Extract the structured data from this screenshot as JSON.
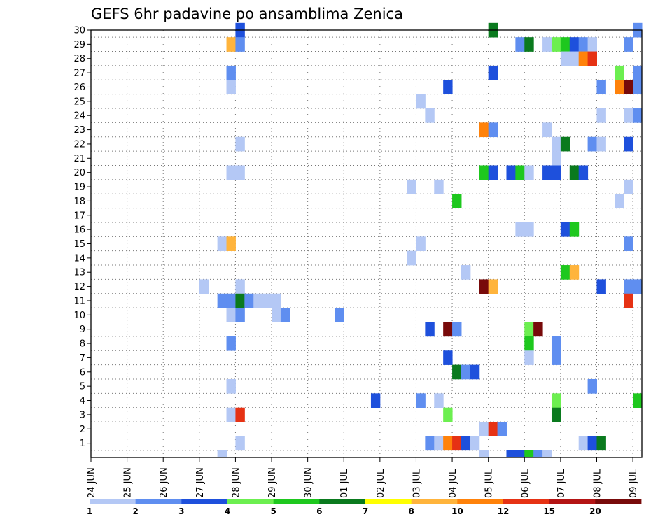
{
  "chart_data": {
    "type": "heatmap",
    "title": "GEFS 6hr padavine po ansamblima Zenica",
    "xlabel": "",
    "ylabel": "",
    "x_tick_labels": [
      "24 JUN",
      "25 JUN",
      "26 JUN",
      "27 JUN",
      "28 JUN",
      "29 JUN",
      "30 JUN",
      "01 JUL",
      "02 JUL",
      "03 JUL",
      "04 JUL",
      "05 JUL",
      "06 JUL",
      "07 JUL",
      "08 JUL",
      "09 JUL"
    ],
    "y_tick_labels": [
      "1",
      "2",
      "3",
      "4",
      "5",
      "6",
      "7",
      "8",
      "9",
      "10",
      "11",
      "12",
      "13",
      "14",
      "15",
      "16",
      "17",
      "18",
      "19",
      "20",
      "21",
      "22",
      "23",
      "24",
      "25",
      "26",
      "27",
      "28",
      "29",
      "30"
    ],
    "x_unit": "6-hour step (0 = 24 JUN 00h, 60 = 09 JUL 00h)",
    "xlim": [
      0,
      61
    ],
    "ylim": [
      0,
      30
    ],
    "grid": true,
    "colorbar": {
      "position": "bottom",
      "labels": [
        "1",
        "2",
        "3",
        "4",
        "5",
        "6",
        "7",
        "8",
        "10",
        "12",
        "15",
        "20"
      ],
      "colors": [
        "#b4c8f5",
        "#5f8ef0",
        "#1e50dc",
        "#6cef50",
        "#1ec81e",
        "#0a7a1e",
        "#ffff00",
        "#ffb43c",
        "#ff820a",
        "#e63214",
        "#b41414",
        "#780a0a"
      ]
    },
    "cells": [
      {
        "m": 30,
        "t": 16,
        "c": 2
      },
      {
        "m": 30,
        "t": 44,
        "c": 5
      },
      {
        "m": 30,
        "t": 60,
        "c": 1
      },
      {
        "m": 29,
        "t": 15,
        "c": 7
      },
      {
        "m": 29,
        "t": 16,
        "c": 1
      },
      {
        "m": 29,
        "t": 47,
        "c": 1
      },
      {
        "m": 29,
        "t": 48,
        "c": 5
      },
      {
        "m": 29,
        "t": 50,
        "c": 0
      },
      {
        "m": 29,
        "t": 51,
        "c": 3
      },
      {
        "m": 29,
        "t": 52,
        "c": 4
      },
      {
        "m": 29,
        "t": 53,
        "c": 2
      },
      {
        "m": 29,
        "t": 54,
        "c": 1
      },
      {
        "m": 29,
        "t": 55,
        "c": 0
      },
      {
        "m": 29,
        "t": 59,
        "c": 1
      },
      {
        "m": 28,
        "t": 52,
        "c": 0
      },
      {
        "m": 28,
        "t": 53,
        "c": 0
      },
      {
        "m": 28,
        "t": 54,
        "c": 8
      },
      {
        "m": 28,
        "t": 55,
        "c": 9
      },
      {
        "m": 27,
        "t": 15,
        "c": 1
      },
      {
        "m": 27,
        "t": 44,
        "c": 2
      },
      {
        "m": 27,
        "t": 58,
        "c": 3
      },
      {
        "m": 27,
        "t": 60,
        "c": 1
      },
      {
        "m": 26,
        "t": 15,
        "c": 0
      },
      {
        "m": 26,
        "t": 39,
        "c": 2
      },
      {
        "m": 26,
        "t": 56,
        "c": 1
      },
      {
        "m": 26,
        "t": 58,
        "c": 8
      },
      {
        "m": 26,
        "t": 59,
        "c": 11
      },
      {
        "m": 26,
        "t": 60,
        "c": 1
      },
      {
        "m": 25,
        "t": 36,
        "c": 0
      },
      {
        "m": 24,
        "t": 37,
        "c": 0
      },
      {
        "m": 24,
        "t": 56,
        "c": 0
      },
      {
        "m": 24,
        "t": 59,
        "c": 0
      },
      {
        "m": 24,
        "t": 60,
        "c": 1
      },
      {
        "m": 23,
        "t": 43,
        "c": 8
      },
      {
        "m": 23,
        "t": 44,
        "c": 1
      },
      {
        "m": 23,
        "t": 50,
        "c": 0
      },
      {
        "m": 22,
        "t": 16,
        "c": 0
      },
      {
        "m": 22,
        "t": 51,
        "c": 0
      },
      {
        "m": 22,
        "t": 52,
        "c": 5
      },
      {
        "m": 22,
        "t": 55,
        "c": 1
      },
      {
        "m": 22,
        "t": 56,
        "c": 0
      },
      {
        "m": 22,
        "t": 59,
        "c": 2
      },
      {
        "m": 21,
        "t": 51,
        "c": 0
      },
      {
        "m": 20,
        "t": 15,
        "c": 0
      },
      {
        "m": 20,
        "t": 16,
        "c": 0
      },
      {
        "m": 20,
        "t": 43,
        "c": 4
      },
      {
        "m": 20,
        "t": 44,
        "c": 2
      },
      {
        "m": 20,
        "t": 46,
        "c": 2
      },
      {
        "m": 20,
        "t": 47,
        "c": 4
      },
      {
        "m": 20,
        "t": 48,
        "c": 0
      },
      {
        "m": 20,
        "t": 50,
        "c": 2
      },
      {
        "m": 20,
        "t": 51,
        "c": 2
      },
      {
        "m": 20,
        "t": 53,
        "c": 5
      },
      {
        "m": 20,
        "t": 54,
        "c": 2
      },
      {
        "m": 19,
        "t": 35,
        "c": 0
      },
      {
        "m": 19,
        "t": 38,
        "c": 0
      },
      {
        "m": 19,
        "t": 59,
        "c": 0
      },
      {
        "m": 18,
        "t": 40,
        "c": 4
      },
      {
        "m": 18,
        "t": 58,
        "c": 0
      },
      {
        "m": 16,
        "t": 47,
        "c": 0
      },
      {
        "m": 16,
        "t": 48,
        "c": 0
      },
      {
        "m": 16,
        "t": 52,
        "c": 2
      },
      {
        "m": 16,
        "t": 53,
        "c": 4
      },
      {
        "m": 15,
        "t": 14,
        "c": 0
      },
      {
        "m": 15,
        "t": 15,
        "c": 7
      },
      {
        "m": 15,
        "t": 36,
        "c": 0
      },
      {
        "m": 15,
        "t": 59,
        "c": 1
      },
      {
        "m": 14,
        "t": 35,
        "c": 0
      },
      {
        "m": 13,
        "t": 41,
        "c": 0
      },
      {
        "m": 13,
        "t": 52,
        "c": 4
      },
      {
        "m": 13,
        "t": 53,
        "c": 7
      },
      {
        "m": 12,
        "t": 12,
        "c": 0
      },
      {
        "m": 12,
        "t": 16,
        "c": 0
      },
      {
        "m": 12,
        "t": 43,
        "c": 11
      },
      {
        "m": 12,
        "t": 44,
        "c": 7
      },
      {
        "m": 12,
        "t": 56,
        "c": 2
      },
      {
        "m": 12,
        "t": 59,
        "c": 1
      },
      {
        "m": 12,
        "t": 60,
        "c": 1
      },
      {
        "m": 11,
        "t": 14,
        "c": 1
      },
      {
        "m": 11,
        "t": 15,
        "c": 1
      },
      {
        "m": 11,
        "t": 16,
        "c": 5
      },
      {
        "m": 11,
        "t": 17,
        "c": 1
      },
      {
        "m": 11,
        "t": 18,
        "c": 0
      },
      {
        "m": 11,
        "t": 19,
        "c": 0
      },
      {
        "m": 11,
        "t": 20,
        "c": 0
      },
      {
        "m": 11,
        "t": 59,
        "c": 9
      },
      {
        "m": 10,
        "t": 15,
        "c": 0
      },
      {
        "m": 10,
        "t": 16,
        "c": 1
      },
      {
        "m": 10,
        "t": 20,
        "c": 0
      },
      {
        "m": 10,
        "t": 21,
        "c": 1
      },
      {
        "m": 10,
        "t": 27,
        "c": 1
      },
      {
        "m": 9,
        "t": 37,
        "c": 2
      },
      {
        "m": 9,
        "t": 39,
        "c": 11
      },
      {
        "m": 9,
        "t": 40,
        "c": 1
      },
      {
        "m": 9,
        "t": 48,
        "c": 3
      },
      {
        "m": 9,
        "t": 49,
        "c": 11
      },
      {
        "m": 8,
        "t": 15,
        "c": 1
      },
      {
        "m": 8,
        "t": 48,
        "c": 4
      },
      {
        "m": 8,
        "t": 51,
        "c": 1
      },
      {
        "m": 7,
        "t": 39,
        "c": 2
      },
      {
        "m": 7,
        "t": 48,
        "c": 0
      },
      {
        "m": 7,
        "t": 51,
        "c": 1
      },
      {
        "m": 6,
        "t": 40,
        "c": 5
      },
      {
        "m": 6,
        "t": 41,
        "c": 1
      },
      {
        "m": 6,
        "t": 42,
        "c": 2
      },
      {
        "m": 5,
        "t": 15,
        "c": 0
      },
      {
        "m": 5,
        "t": 55,
        "c": 1
      },
      {
        "m": 4,
        "t": 31,
        "c": 2
      },
      {
        "m": 4,
        "t": 36,
        "c": 1
      },
      {
        "m": 4,
        "t": 38,
        "c": 0
      },
      {
        "m": 4,
        "t": 51,
        "c": 3
      },
      {
        "m": 4,
        "t": 60,
        "c": 4
      },
      {
        "m": 3,
        "t": 15,
        "c": 0
      },
      {
        "m": 3,
        "t": 16,
        "c": 9
      },
      {
        "m": 3,
        "t": 39,
        "c": 3
      },
      {
        "m": 3,
        "t": 51,
        "c": 5
      },
      {
        "m": 2,
        "t": 43,
        "c": 0
      },
      {
        "m": 2,
        "t": 44,
        "c": 9
      },
      {
        "m": 2,
        "t": 45,
        "c": 1
      },
      {
        "m": 1,
        "t": 16,
        "c": 0
      },
      {
        "m": 1,
        "t": 37,
        "c": 1
      },
      {
        "m": 1,
        "t": 38,
        "c": 0
      },
      {
        "m": 1,
        "t": 39,
        "c": 8
      },
      {
        "m": 1,
        "t": 40,
        "c": 9
      },
      {
        "m": 1,
        "t": 41,
        "c": 2
      },
      {
        "m": 1,
        "t": 42,
        "c": 0
      },
      {
        "m": 1,
        "t": 54,
        "c": 0
      },
      {
        "m": 1,
        "t": 55,
        "c": 2
      },
      {
        "m": 1,
        "t": 56,
        "c": 5
      },
      {
        "m": 0,
        "t": 14,
        "c": 0
      },
      {
        "m": 0,
        "t": 43,
        "c": 0
      },
      {
        "m": 0,
        "t": 46,
        "c": 2
      },
      {
        "m": 0,
        "t": 47,
        "c": 2
      },
      {
        "m": 0,
        "t": 48,
        "c": 4
      },
      {
        "m": 0,
        "t": 49,
        "c": 1
      },
      {
        "m": 0,
        "t": 50,
        "c": 0
      }
    ]
  }
}
